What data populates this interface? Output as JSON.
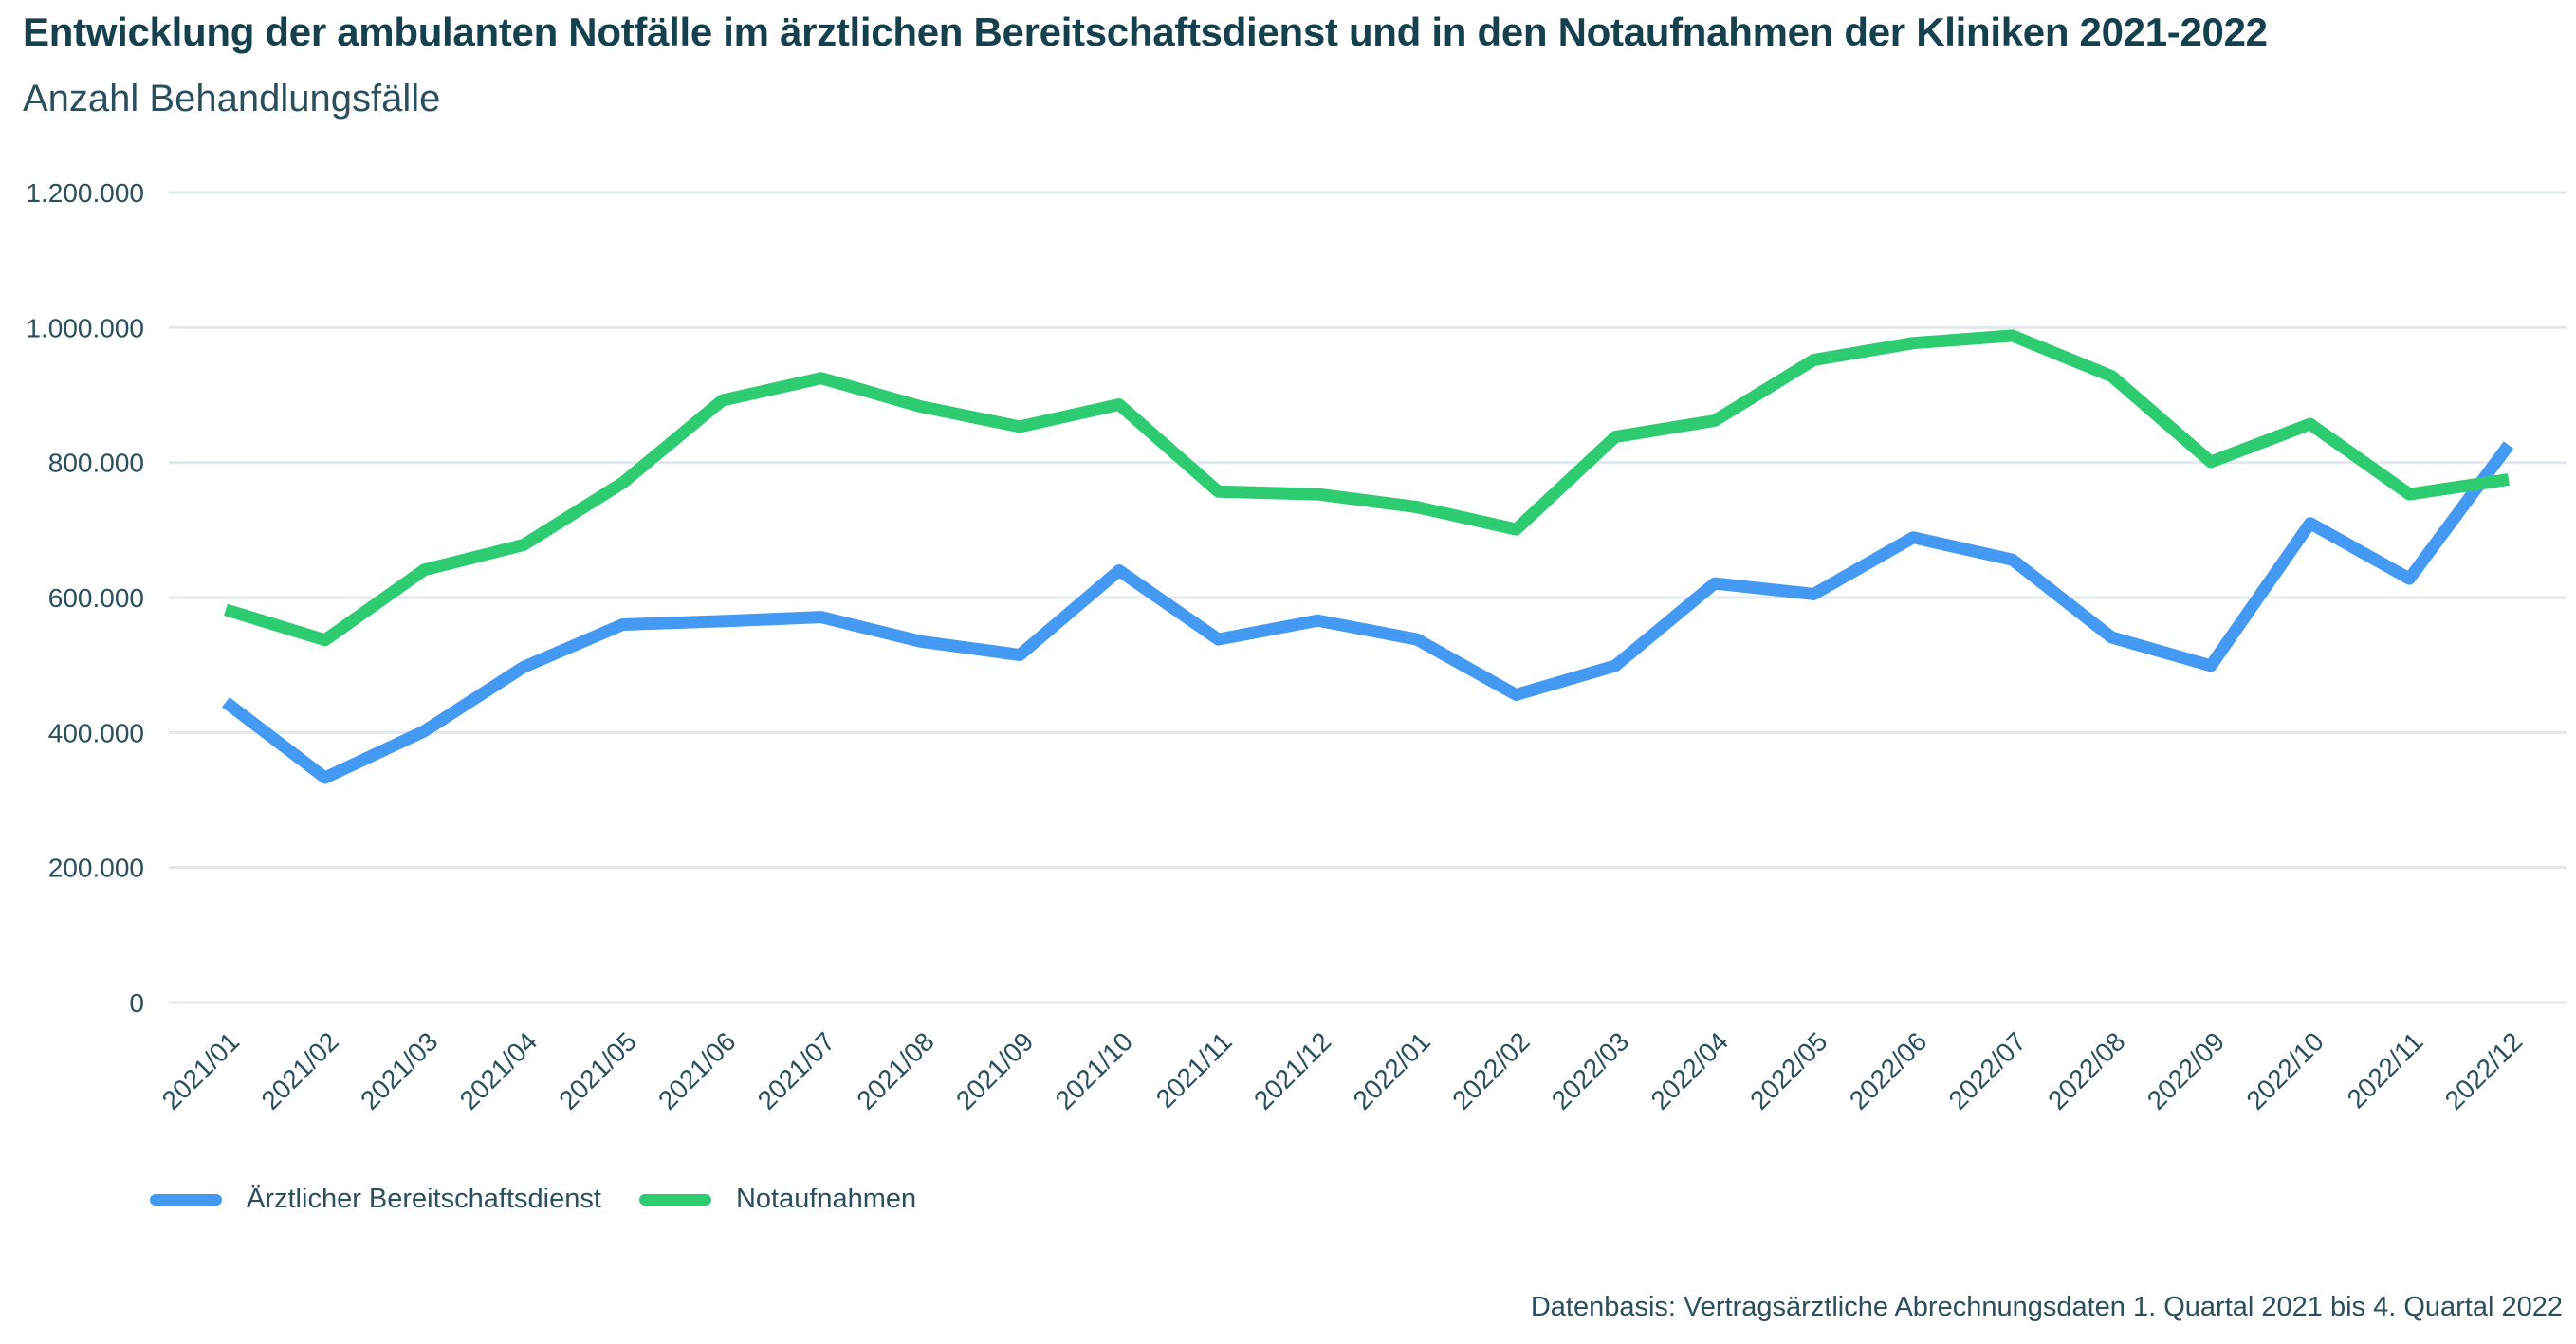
{
  "header": {
    "title": "Entwicklung der ambulanten Notfälle im ärztlichen Bereitschaftsdienst und in den Notaufnahmen der Kliniken 2021-2022",
    "subtitle": "Anzahl Behandlungsfälle"
  },
  "source": "Datenbasis: Vertragsärztliche Abrechnungsdaten 1. Quartal 2021 bis 4. Quartal 2022",
  "chart_data": {
    "type": "line",
    "title": "Entwicklung der ambulanten Notfälle im ärztlichen Bereitschaftsdienst und in den Notaufnahmen der Kliniken 2021-2022",
    "subtitle": "Anzahl Behandlungsfälle",
    "xlabel": "",
    "ylabel": "",
    "ylim": [
      0,
      1200000
    ],
    "yticks": [
      0,
      200000,
      400000,
      600000,
      800000,
      1000000,
      1200000
    ],
    "ytick_labels": [
      "0",
      "200.000",
      "400.000",
      "600.000",
      "800.000",
      "1.000.000",
      "1.200.000"
    ],
    "grid": true,
    "legend_position": "bottom-left",
    "categories": [
      "2021/01",
      "2021/02",
      "2021/03",
      "2021/04",
      "2021/05",
      "2021/06",
      "2021/07",
      "2021/08",
      "2021/09",
      "2021/10",
      "2021/11",
      "2021/12",
      "2022/01",
      "2022/02",
      "2022/03",
      "2022/04",
      "2022/05",
      "2022/06",
      "2022/07",
      "2022/08",
      "2022/09",
      "2022/10",
      "2022/11",
      "2022/12"
    ],
    "series": [
      {
        "name": "Ärztlicher Bereitschaftsdienst",
        "color": "#4499f2",
        "values": [
          445000,
          333000,
          402000,
          497000,
          560000,
          565000,
          571000,
          535000,
          515000,
          640000,
          538000,
          566000,
          538000,
          456000,
          499000,
          621000,
          605000,
          689000,
          656000,
          541000,
          499000,
          710000,
          628000,
          826000
        ]
      },
      {
        "name": "Notaufnahmen",
        "color": "#2ecc71",
        "values": [
          582000,
          537000,
          641000,
          678000,
          770000,
          892000,
          925000,
          883000,
          853000,
          886000,
          757000,
          753000,
          734000,
          701000,
          838000,
          862000,
          952000,
          977000,
          988000,
          928000,
          801000,
          857000,
          753000,
          775000
        ]
      }
    ]
  }
}
